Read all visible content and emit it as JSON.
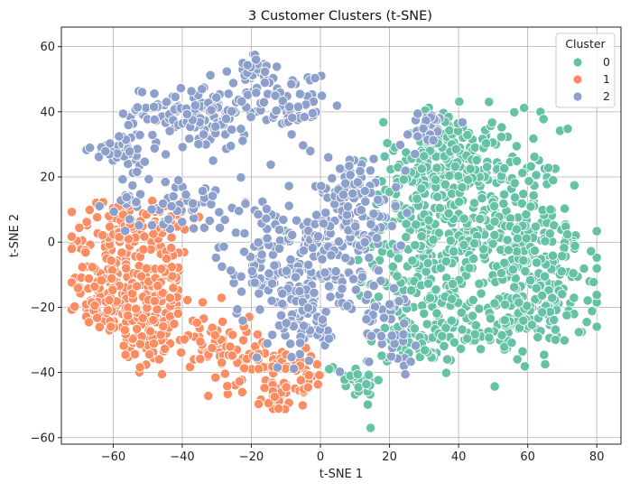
{
  "chart_data": {
    "type": "scatter",
    "title": "3 Customer Clusters (t-SNE)",
    "xlabel": "t-SNE 1",
    "ylabel": "t-SNE 2",
    "xlim": [
      -75,
      87
    ],
    "ylim": [
      -62,
      66
    ],
    "xticks": [
      -60,
      -40,
      -20,
      0,
      20,
      40,
      60,
      80
    ],
    "yticks": [
      -60,
      -40,
      -20,
      0,
      20,
      40,
      60
    ],
    "grid": true,
    "legend": {
      "title": "Cluster",
      "placement": "top-right"
    },
    "series": [
      {
        "name": "0",
        "color": "#66c2a5",
        "clusters": [
          {
            "cx": 30,
            "cy": -5,
            "sx": 10,
            "sy": 18,
            "n": 220
          },
          {
            "cx": 50,
            "cy": 5,
            "sx": 10,
            "sy": 15,
            "n": 230
          },
          {
            "cx": 65,
            "cy": -10,
            "sx": 8,
            "sy": 10,
            "n": 140
          },
          {
            "cx": 55,
            "cy": -25,
            "sx": 9,
            "sy": 5,
            "n": 90
          },
          {
            "cx": 35,
            "cy": 30,
            "sx": 7,
            "sy": 6,
            "n": 70
          },
          {
            "cx": 45,
            "cy": 22,
            "sx": 5,
            "sy": 6,
            "n": 40
          },
          {
            "cx": 25,
            "cy": 18,
            "sx": 5,
            "sy": 7,
            "n": 50
          },
          {
            "cx": 10,
            "cy": -42,
            "sx": 4,
            "sy": 3,
            "n": 25
          },
          {
            "cx": 30,
            "cy": -30,
            "sx": 5,
            "sy": 5,
            "n": 30
          }
        ]
      },
      {
        "name": "1",
        "color": "#fc8d62",
        "clusters": [
          {
            "cx": -60,
            "cy": 0,
            "sx": 6,
            "sy": 7,
            "n": 90
          },
          {
            "cx": -63,
            "cy": -18,
            "sx": 5,
            "sy": 5,
            "n": 80
          },
          {
            "cx": -50,
            "cy": -25,
            "sx": 4,
            "sy": 7,
            "n": 90
          },
          {
            "cx": -45,
            "cy": -10,
            "sx": 4,
            "sy": 7,
            "n": 60
          },
          {
            "cx": -48,
            "cy": 6,
            "sx": 4,
            "sy": 4,
            "n": 35
          },
          {
            "cx": -33,
            "cy": -30,
            "sx": 4,
            "sy": 5,
            "n": 40
          },
          {
            "cx": -22,
            "cy": -35,
            "sx": 6,
            "sy": 5,
            "n": 50
          },
          {
            "cx": -12,
            "cy": -45,
            "sx": 3,
            "sy": 4,
            "n": 35
          },
          {
            "cx": -5,
            "cy": -40,
            "sx": 4,
            "sy": 3,
            "n": 25
          }
        ]
      },
      {
        "name": "2",
        "color": "#8da0cb",
        "clusters": [
          {
            "cx": -45,
            "cy": 40,
            "sx": 6,
            "sy": 4,
            "n": 60
          },
          {
            "cx": -58,
            "cy": 28,
            "sx": 4,
            "sy": 3,
            "n": 40
          },
          {
            "cx": -30,
            "cy": 38,
            "sx": 5,
            "sy": 6,
            "n": 80
          },
          {
            "cx": -18,
            "cy": 52,
            "sx": 3,
            "sy": 4,
            "n": 30
          },
          {
            "cx": -8,
            "cy": 42,
            "sx": 5,
            "sy": 5,
            "n": 50
          },
          {
            "cx": -40,
            "cy": 12,
            "sx": 5,
            "sy": 4,
            "n": 40
          },
          {
            "cx": -55,
            "cy": 12,
            "sx": 3,
            "sy": 4,
            "n": 20
          },
          {
            "cx": -15,
            "cy": -5,
            "sx": 7,
            "sy": 10,
            "n": 120
          },
          {
            "cx": 5,
            "cy": -5,
            "sx": 7,
            "sy": 12,
            "n": 150
          },
          {
            "cx": 10,
            "cy": 15,
            "sx": 6,
            "sy": 6,
            "n": 80
          },
          {
            "cx": 30,
            "cy": 35,
            "sx": 4,
            "sy": 3,
            "n": 25
          },
          {
            "cx": -5,
            "cy": -25,
            "sx": 5,
            "sy": 6,
            "n": 50
          },
          {
            "cx": 20,
            "cy": -25,
            "sx": 4,
            "sy": 6,
            "n": 40
          }
        ]
      }
    ]
  }
}
